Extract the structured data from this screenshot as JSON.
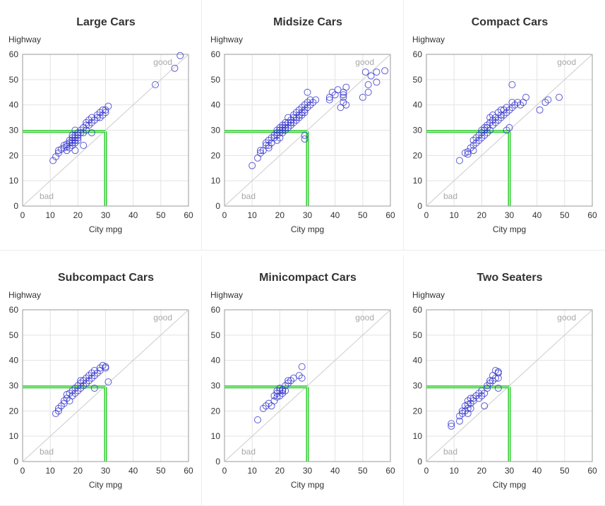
{
  "chart_data": [
    {
      "type": "scatter",
      "title": "Large Cars",
      "xlabel": "City mpg",
      "ylabel": "Highway",
      "xlim": [
        0,
        60
      ],
      "ylim": [
        0,
        60
      ],
      "xticks": [
        "0",
        "10",
        "20",
        "30",
        "40",
        "50",
        "60"
      ],
      "yticks": [
        "0",
        "10",
        "20",
        "30",
        "40",
        "50",
        "60"
      ],
      "annotations": {
        "good": "good",
        "bad": "bad"
      },
      "reference_line": {
        "x": 30,
        "y": 29.5,
        "color": "#33cc33"
      },
      "marker_color": "#3333cc",
      "diagonal_color": "#cccccc",
      "points": [
        [
          11,
          18
        ],
        [
          12,
          19.5
        ],
        [
          13,
          21
        ],
        [
          13,
          22
        ],
        [
          14,
          22.5
        ],
        [
          15,
          23
        ],
        [
          15,
          24
        ],
        [
          16,
          22
        ],
        [
          16,
          23.5
        ],
        [
          16,
          24.5
        ],
        [
          17,
          23
        ],
        [
          17,
          25
        ],
        [
          17,
          26
        ],
        [
          18,
          24
        ],
        [
          18,
          25
        ],
        [
          18,
          26
        ],
        [
          18,
          27
        ],
        [
          18,
          28
        ],
        [
          19,
          25
        ],
        [
          19,
          26
        ],
        [
          19,
          27
        ],
        [
          19,
          28
        ],
        [
          19,
          30
        ],
        [
          20,
          26
        ],
        [
          20,
          27
        ],
        [
          20,
          28
        ],
        [
          20,
          29
        ],
        [
          19,
          22
        ],
        [
          21,
          29
        ],
        [
          21,
          30
        ],
        [
          22,
          31
        ],
        [
          22,
          29
        ],
        [
          22,
          24
        ],
        [
          23,
          33
        ],
        [
          23,
          32
        ],
        [
          23,
          30
        ],
        [
          24,
          34
        ],
        [
          24,
          32
        ],
        [
          25,
          35
        ],
        [
          25,
          33
        ],
        [
          25,
          29
        ],
        [
          26,
          34
        ],
        [
          27,
          35
        ],
        [
          27,
          36
        ],
        [
          28,
          37
        ],
        [
          28,
          35
        ],
        [
          29,
          36
        ],
        [
          29,
          38
        ],
        [
          30,
          38
        ],
        [
          30,
          37
        ],
        [
          31,
          39.5
        ],
        [
          48,
          48
        ],
        [
          55,
          54.5
        ],
        [
          57,
          59.5
        ]
      ]
    },
    {
      "type": "scatter",
      "title": "Midsize Cars",
      "xlabel": "City mpg",
      "ylabel": "Highway",
      "xlim": [
        0,
        60
      ],
      "ylim": [
        0,
        60
      ],
      "xticks": [
        "0",
        "10",
        "20",
        "30",
        "40",
        "50",
        "60"
      ],
      "yticks": [
        "0",
        "10",
        "20",
        "30",
        "40",
        "50",
        "60"
      ],
      "annotations": {
        "good": "good",
        "bad": "bad"
      },
      "reference_line": {
        "x": 30,
        "y": 29.5,
        "color": "#33cc33"
      },
      "marker_color": "#3333cc",
      "diagonal_color": "#cccccc",
      "points": [
        [
          10,
          16
        ],
        [
          12,
          19
        ],
        [
          13,
          21
        ],
        [
          13,
          22
        ],
        [
          14,
          22
        ],
        [
          15,
          24
        ],
        [
          15,
          25
        ],
        [
          16,
          23
        ],
        [
          16,
          24
        ],
        [
          16,
          26
        ],
        [
          17,
          25
        ],
        [
          17,
          27
        ],
        [
          18,
          27
        ],
        [
          18,
          28
        ],
        [
          19,
          26
        ],
        [
          19,
          28
        ],
        [
          19,
          29
        ],
        [
          19,
          30
        ],
        [
          20,
          27
        ],
        [
          20,
          29
        ],
        [
          20,
          30
        ],
        [
          20,
          31
        ],
        [
          21,
          29
        ],
        [
          21,
          30
        ],
        [
          21,
          31
        ],
        [
          21,
          32
        ],
        [
          22,
          30
        ],
        [
          22,
          31
        ],
        [
          22,
          32
        ],
        [
          22,
          33
        ],
        [
          23,
          31
        ],
        [
          23,
          33
        ],
        [
          23,
          35
        ],
        [
          24,
          32
        ],
        [
          24,
          33
        ],
        [
          24,
          34
        ],
        [
          25,
          33
        ],
        [
          25,
          35
        ],
        [
          25,
          36
        ],
        [
          26,
          34
        ],
        [
          26,
          35
        ],
        [
          26,
          37
        ],
        [
          27,
          35
        ],
        [
          27,
          36
        ],
        [
          27,
          38
        ],
        [
          28,
          36
        ],
        [
          28,
          37
        ],
        [
          28,
          39
        ],
        [
          29,
          37
        ],
        [
          29,
          38
        ],
        [
          29,
          40
        ],
        [
          29,
          28
        ],
        [
          29,
          26.5
        ],
        [
          30,
          39
        ],
        [
          30,
          41
        ],
        [
          30,
          45
        ],
        [
          31,
          40
        ],
        [
          31,
          42
        ],
        [
          32,
          41
        ],
        [
          33,
          42
        ],
        [
          38,
          42
        ],
        [
          38,
          43
        ],
        [
          39,
          45
        ],
        [
          40,
          44
        ],
        [
          41,
          46
        ],
        [
          42,
          39
        ],
        [
          43,
          41
        ],
        [
          43,
          43
        ],
        [
          43,
          45
        ],
        [
          43,
          44
        ],
        [
          44,
          40
        ],
        [
          44,
          47
        ],
        [
          50,
          43
        ],
        [
          51,
          53
        ],
        [
          52,
          48
        ],
        [
          52,
          45
        ],
        [
          53,
          51.5
        ],
        [
          55,
          49
        ],
        [
          55,
          53
        ],
        [
          58,
          53.5
        ]
      ]
    },
    {
      "type": "scatter",
      "title": "Compact Cars",
      "xlabel": "City mpg",
      "ylabel": "Highway",
      "xlim": [
        0,
        60
      ],
      "ylim": [
        0,
        60
      ],
      "xticks": [
        "0",
        "10",
        "20",
        "30",
        "40",
        "50",
        "60"
      ],
      "yticks": [
        "0",
        "10",
        "20",
        "30",
        "40",
        "50",
        "60"
      ],
      "annotations": {
        "good": "good",
        "bad": "bad"
      },
      "reference_line": {
        "x": 30,
        "y": 29.5,
        "color": "#33cc33"
      },
      "marker_color": "#3333cc",
      "diagonal_color": "#cccccc",
      "points": [
        [
          12,
          18
        ],
        [
          14,
          21
        ],
        [
          15,
          20.5
        ],
        [
          15,
          21.5
        ],
        [
          16,
          23
        ],
        [
          17,
          22
        ],
        [
          17,
          24
        ],
        [
          17,
          26
        ],
        [
          18,
          25
        ],
        [
          18,
          27
        ],
        [
          19,
          26
        ],
        [
          19,
          28
        ],
        [
          20,
          27
        ],
        [
          20,
          29
        ],
        [
          20,
          30
        ],
        [
          21,
          28
        ],
        [
          21,
          30
        ],
        [
          21,
          31
        ],
        [
          22,
          29
        ],
        [
          22,
          31
        ],
        [
          22,
          32
        ],
        [
          23,
          30
        ],
        [
          23,
          33
        ],
        [
          23,
          35
        ],
        [
          24,
          32
        ],
        [
          24,
          34
        ],
        [
          24,
          36
        ],
        [
          25,
          33
        ],
        [
          25,
          35
        ],
        [
          26,
          34
        ],
        [
          26,
          37
        ],
        [
          27,
          35
        ],
        [
          27,
          36
        ],
        [
          27,
          38
        ],
        [
          28,
          36
        ],
        [
          28,
          38
        ],
        [
          29,
          37
        ],
        [
          29,
          39
        ],
        [
          29,
          30
        ],
        [
          30,
          38
        ],
        [
          30,
          31
        ],
        [
          31,
          39
        ],
        [
          31,
          41
        ],
        [
          31,
          48
        ],
        [
          32,
          40
        ],
        [
          33,
          41
        ],
        [
          34,
          40
        ],
        [
          35,
          41
        ],
        [
          36,
          43
        ],
        [
          41,
          38
        ],
        [
          43,
          41
        ],
        [
          44,
          42
        ],
        [
          48,
          43
        ]
      ]
    },
    {
      "type": "scatter",
      "title": "Subcompact Cars",
      "xlabel": "City mpg",
      "ylabel": "Highway",
      "xlim": [
        0,
        60
      ],
      "ylim": [
        0,
        60
      ],
      "xticks": [
        "0",
        "10",
        "20",
        "30",
        "40",
        "50",
        "60"
      ],
      "yticks": [
        "0",
        "10",
        "20",
        "30",
        "40",
        "50",
        "60"
      ],
      "annotations": {
        "good": "good",
        "bad": "bad"
      },
      "reference_line": {
        "x": 30,
        "y": 29.5,
        "color": "#33cc33"
      },
      "marker_color": "#3333cc",
      "diagonal_color": "#cccccc",
      "points": [
        [
          12,
          19
        ],
        [
          13,
          20
        ],
        [
          13,
          21
        ],
        [
          14,
          22
        ],
        [
          15,
          23
        ],
        [
          15,
          24
        ],
        [
          16,
          25
        ],
        [
          16,
          26.5
        ],
        [
          17,
          24
        ],
        [
          17,
          27
        ],
        [
          18,
          26
        ],
        [
          18,
          28
        ],
        [
          19,
          27
        ],
        [
          19,
          29
        ],
        [
          20,
          28
        ],
        [
          20,
          30
        ],
        [
          21,
          29
        ],
        [
          21,
          31
        ],
        [
          21,
          32
        ],
        [
          22,
          30
        ],
        [
          22,
          32
        ],
        [
          23,
          31
        ],
        [
          23,
          33
        ],
        [
          24,
          32
        ],
        [
          24,
          34
        ],
        [
          25,
          33
        ],
        [
          25,
          35
        ],
        [
          26,
          34
        ],
        [
          26,
          36
        ],
        [
          26,
          29
        ],
        [
          27,
          35
        ],
        [
          28,
          37
        ],
        [
          28,
          36
        ],
        [
          29,
          38
        ],
        [
          30,
          37
        ],
        [
          30,
          37.5
        ],
        [
          31,
          31.5
        ]
      ]
    },
    {
      "type": "scatter",
      "title": "Minicompact Cars",
      "xlabel": "City mpg",
      "ylabel": "Highway",
      "xlim": [
        0,
        60
      ],
      "ylim": [
        0,
        60
      ],
      "xticks": [
        "0",
        "10",
        "20",
        "30",
        "40",
        "50",
        "60"
      ],
      "yticks": [
        "0",
        "10",
        "20",
        "30",
        "40",
        "50",
        "60"
      ],
      "annotations": {
        "good": "good",
        "bad": "bad"
      },
      "reference_line": {
        "x": 30,
        "y": 29.5,
        "color": "#33cc33"
      },
      "marker_color": "#3333cc",
      "diagonal_color": "#cccccc",
      "points": [
        [
          12,
          16.5
        ],
        [
          14,
          21
        ],
        [
          15,
          22
        ],
        [
          16,
          23
        ],
        [
          17,
          22
        ],
        [
          18,
          24
        ],
        [
          18,
          26
        ],
        [
          19,
          25.5
        ],
        [
          19,
          27
        ],
        [
          19,
          28
        ],
        [
          20,
          26
        ],
        [
          20,
          28
        ],
        [
          20,
          29
        ],
        [
          21,
          27
        ],
        [
          21,
          28
        ],
        [
          21,
          28.5
        ],
        [
          22,
          28
        ],
        [
          22,
          30
        ],
        [
          23,
          31
        ],
        [
          23,
          32
        ],
        [
          24,
          32
        ],
        [
          25,
          33
        ],
        [
          27,
          34
        ],
        [
          28,
          33
        ],
        [
          28,
          37.5
        ]
      ]
    },
    {
      "type": "scatter",
      "title": "Two Seaters",
      "xlabel": "City mpg",
      "ylabel": "Highway",
      "xlim": [
        0,
        60
      ],
      "ylim": [
        0,
        60
      ],
      "xticks": [
        "0",
        "10",
        "20",
        "30",
        "40",
        "50",
        "60"
      ],
      "yticks": [
        "0",
        "10",
        "20",
        "30",
        "40",
        "50",
        "60"
      ],
      "annotations": {
        "good": "good",
        "bad": "bad"
      },
      "reference_line": {
        "x": 30,
        "y": 29.5,
        "color": "#33cc33"
      },
      "marker_color": "#3333cc",
      "diagonal_color": "#cccccc",
      "points": [
        [
          9,
          14
        ],
        [
          9,
          15
        ],
        [
          12,
          16
        ],
        [
          12,
          18
        ],
        [
          13,
          19
        ],
        [
          13,
          20
        ],
        [
          14,
          20
        ],
        [
          14,
          22
        ],
        [
          15,
          19
        ],
        [
          15,
          21
        ],
        [
          15,
          22.5
        ],
        [
          15,
          24
        ],
        [
          16,
          21
        ],
        [
          16,
          23
        ],
        [
          16,
          25
        ],
        [
          17,
          24
        ],
        [
          17,
          25
        ],
        [
          18,
          26
        ],
        [
          19,
          25
        ],
        [
          19,
          27
        ],
        [
          20,
          26
        ],
        [
          20,
          28
        ],
        [
          21,
          27
        ],
        [
          21,
          22
        ],
        [
          22,
          29
        ],
        [
          22,
          30
        ],
        [
          23,
          31
        ],
        [
          23,
          32
        ],
        [
          24,
          32
        ],
        [
          24,
          34
        ],
        [
          25,
          33
        ],
        [
          25,
          36
        ],
        [
          26,
          29
        ],
        [
          26,
          33
        ],
        [
          26,
          35.5
        ],
        [
          26,
          35
        ]
      ]
    }
  ]
}
